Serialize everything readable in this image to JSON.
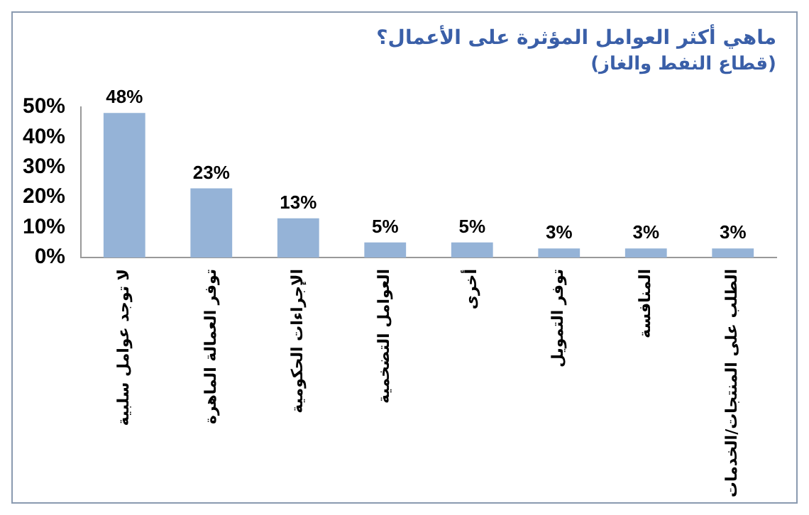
{
  "chart_data": {
    "type": "bar",
    "title": "ماهي أكثر العوامل المؤثرة على الأعمال؟",
    "subtitle": "(قطاع النفط والغاز)",
    "categories": [
      "لا توجد عوامل سلبية",
      "توفر العمالة الماهرة",
      "الإجراءات الحكومية",
      "العوامل التضخمية",
      "أخرى",
      "توفر التمويل",
      "المنافسة",
      "الطلب على المنتجات/الخدمات"
    ],
    "values": [
      48,
      23,
      13,
      5,
      5,
      3,
      3,
      3
    ],
    "color": "#95b3d7",
    "ylim": [
      0,
      50
    ],
    "yticks": [
      {
        "value": 0,
        "label": "0%"
      },
      {
        "value": 10,
        "label": "10%"
      },
      {
        "value": 20,
        "label": "20%"
      },
      {
        "value": 30,
        "label": "30%"
      },
      {
        "value": 40,
        "label": "40%"
      },
      {
        "value": 50,
        "label": "50%"
      }
    ],
    "value_labels": [
      "48%",
      "23%",
      "13%",
      "5%",
      "5%",
      "3%",
      "3%",
      "3%"
    ],
    "grid": false,
    "legend": false
  }
}
